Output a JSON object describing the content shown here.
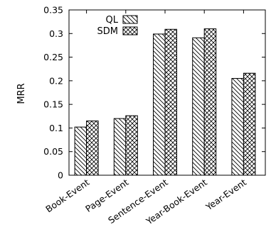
{
  "chart_data": {
    "type": "bar",
    "categories": [
      "Book-Event",
      "Page-Event",
      "Sentence-Event",
      "Year-Book-Event",
      "Year-Event"
    ],
    "series": [
      {
        "name": "QL",
        "values": [
          0.102,
          0.12,
          0.299,
          0.291,
          0.205
        ],
        "pattern": "diagonal"
      },
      {
        "name": "SDM",
        "values": [
          0.115,
          0.126,
          0.309,
          0.31,
          0.216
        ],
        "pattern": "crosshatch"
      }
    ],
    "title": "",
    "xlabel": "",
    "ylabel": "MRR",
    "ylim": [
      0,
      0.35
    ],
    "yticks": [
      "0",
      "0.05",
      "0.1",
      "0.15",
      "0.2",
      "0.25",
      "0.3",
      "0.35"
    ],
    "grid": false,
    "legend_position": "top-left"
  }
}
